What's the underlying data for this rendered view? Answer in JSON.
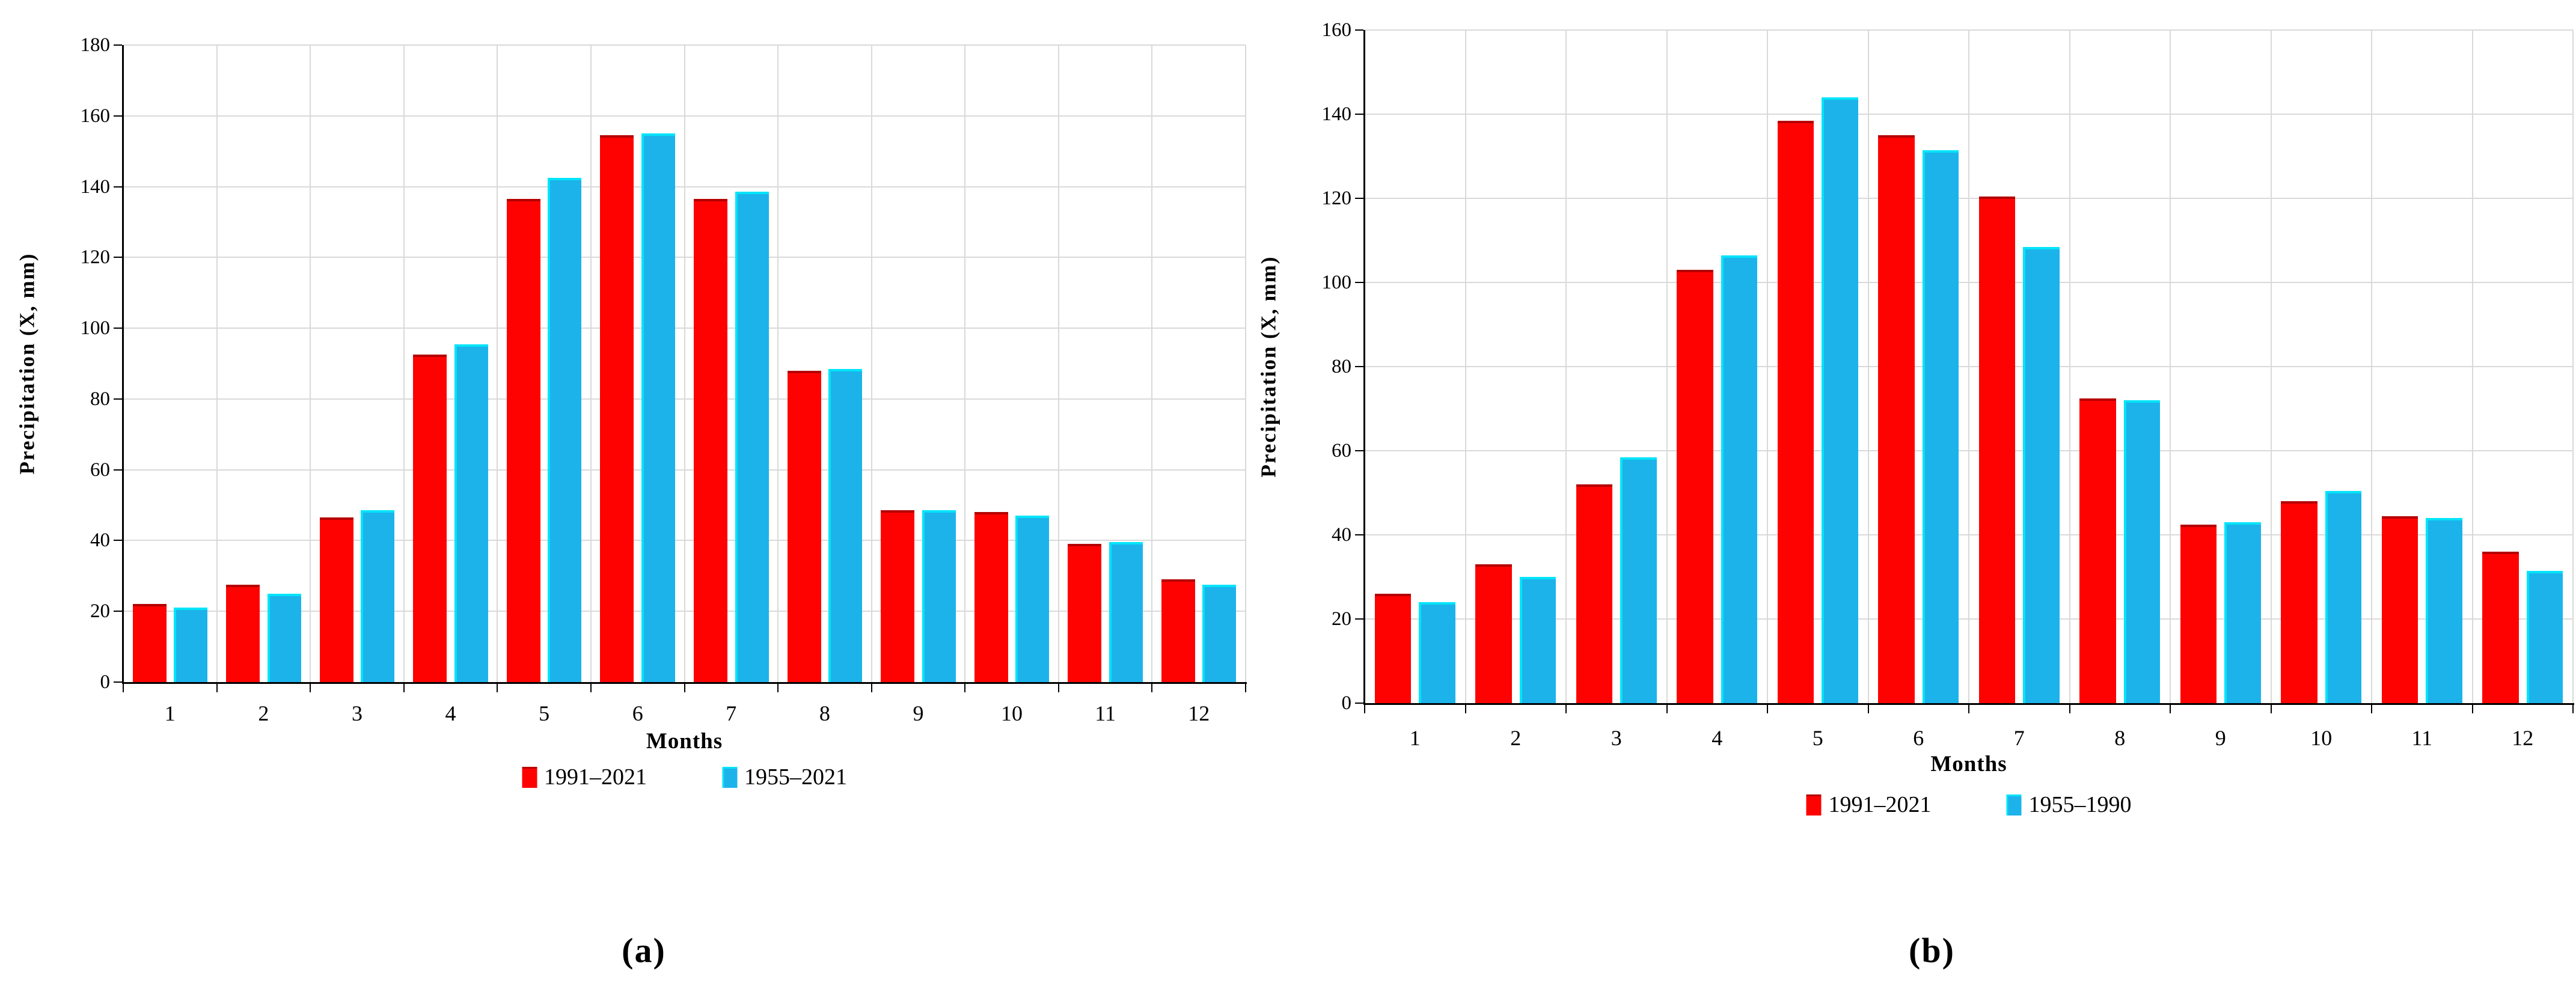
{
  "colors": {
    "red": "#fe0202",
    "blue": "#1cb3eb",
    "red_edge": "#b50000",
    "blue_edge": "#00e4f9",
    "gridline": "#d9d9d9",
    "axis": "#000000"
  },
  "chart_data": [
    {
      "id": "a",
      "type": "bar",
      "sublabel": "(a)",
      "xlabel": "Months",
      "ylabel": "Precipitation (X, mm)",
      "ylim": [
        0,
        180
      ],
      "ytick_step": 20,
      "yticks": [
        0,
        20,
        40,
        60,
        80,
        100,
        120,
        140,
        160,
        180
      ],
      "grid": true,
      "legend_position": "bottom",
      "categories": [
        "1",
        "2",
        "3",
        "4",
        "5",
        "6",
        "7",
        "8",
        "9",
        "10",
        "11",
        "12"
      ],
      "series": [
        {
          "name": "1991–2021",
          "color_key": "red",
          "values": [
            22,
            27.5,
            46.5,
            92.5,
            136.5,
            154.5,
            136.5,
            88,
            48.5,
            48,
            39,
            29
          ]
        },
        {
          "name": "1955–2021",
          "color_key": "blue",
          "values": [
            21,
            25,
            48.5,
            95.5,
            142.5,
            155,
            138.5,
            88.5,
            48.5,
            47,
            39.5,
            27.5
          ]
        }
      ]
    },
    {
      "id": "b",
      "type": "bar",
      "sublabel": "(b)",
      "xlabel": "Months",
      "ylabel": "Precipitation (X, mm)",
      "ylim": [
        0,
        160
      ],
      "ytick_step": 20,
      "yticks": [
        0,
        20,
        40,
        60,
        80,
        100,
        120,
        140,
        160
      ],
      "grid": true,
      "legend_position": "bottom",
      "categories": [
        "1",
        "2",
        "3",
        "4",
        "5",
        "6",
        "7",
        "8",
        "9",
        "10",
        "11",
        "12"
      ],
      "series": [
        {
          "name": "1991–2021",
          "color_key": "red",
          "values": [
            26,
            33,
            52,
            103,
            138.5,
            135,
            120.5,
            72.5,
            42.5,
            48,
            44.5,
            36
          ]
        },
        {
          "name": "1955–1990",
          "color_key": "blue",
          "values": [
            24,
            30,
            58.5,
            106.5,
            144,
            131.5,
            108.5,
            72,
            43,
            50.5,
            44,
            31.5
          ]
        }
      ]
    }
  ]
}
